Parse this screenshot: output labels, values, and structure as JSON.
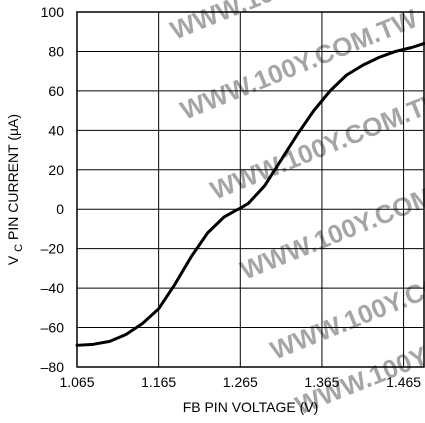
{
  "chart_data": {
    "type": "line",
    "title": "",
    "xlabel": "FB PIN VOLTAGE (V)",
    "ylabel": "V",
    "ylabel_sub": "C",
    "ylabel_rest": " PIN CURRENT (µA)",
    "xlim": [
      1.065,
      1.49
    ],
    "ylim": [
      -80,
      100
    ],
    "x_ticks": [
      1.065,
      1.165,
      1.265,
      1.365,
      1.465
    ],
    "x_tick_labels": [
      "1.065",
      "1.165",
      "1.265",
      "1.365",
      "1.465"
    ],
    "y_ticks": [
      -80,
      -60,
      -40,
      -20,
      0,
      20,
      40,
      60,
      80,
      100
    ],
    "y_tick_labels": [
      "–80",
      "–60",
      "–40",
      "–20",
      "0",
      "20",
      "40",
      "60",
      "80",
      "100"
    ],
    "grid": true,
    "series": [
      {
        "x": [
          1.065,
          1.085,
          1.105,
          1.125,
          1.145,
          1.165,
          1.185,
          1.205,
          1.225,
          1.245,
          1.26,
          1.265,
          1.275,
          1.295,
          1.315,
          1.335,
          1.355,
          1.375,
          1.395,
          1.415,
          1.435,
          1.455,
          1.475,
          1.49
        ],
        "values": [
          -69,
          -68.5,
          -67,
          -63.5,
          -58,
          -50.5,
          -38,
          -24,
          -12,
          -4,
          -0.5,
          0.5,
          3,
          12,
          25,
          38,
          50,
          60,
          68,
          73,
          77,
          80,
          82,
          84
        ]
      }
    ],
    "watermark": "WWW.100Y.COM.TW"
  }
}
